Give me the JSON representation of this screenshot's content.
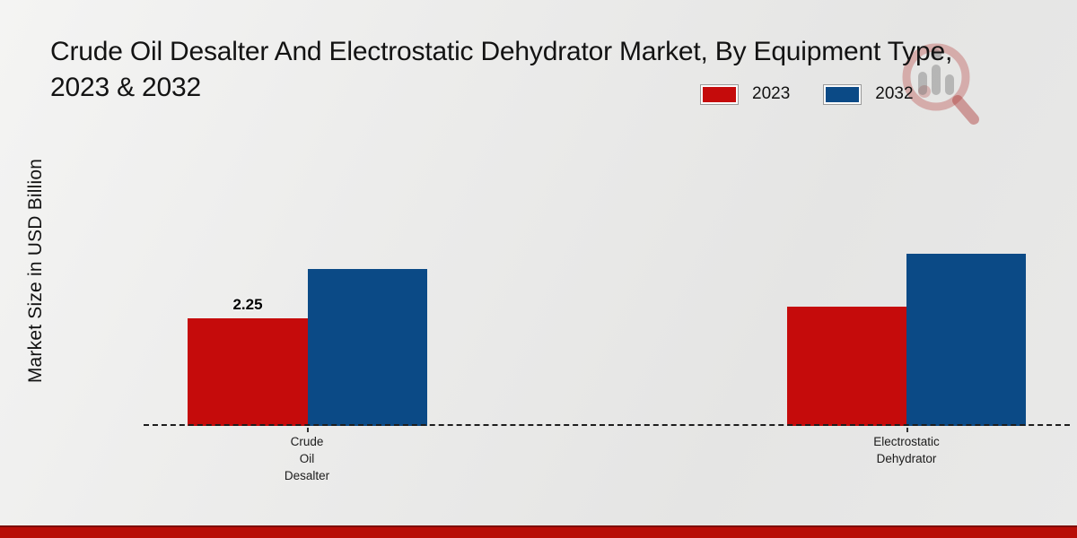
{
  "title": {
    "line1": "Crude Oil Desalter And Electrostatic Dehydrator Market, By Equipment Type,",
    "line2": "2023 & 2032"
  },
  "y_axis_label": "Market Size in USD Billion",
  "legend": {
    "items": [
      {
        "label": "2023",
        "color": "#c50b0b"
      },
      {
        "label": "2032",
        "color": "#0b4a86"
      }
    ]
  },
  "categories": [
    {
      "label": "Crude\nOil\nDesalter"
    },
    {
      "label": "Electrostatic\nDehydrator"
    }
  ],
  "data_labels": {
    "crude_2023": "2.25"
  },
  "colors": {
    "series_2023": "#c50b0b",
    "series_2032": "#0b4a86",
    "footer_strip": "#b80d07",
    "footer_strip_edge": "#7d0d06",
    "baseline": "#1d1d1d",
    "text": "#131313"
  },
  "watermark_icon": "magnifier-bar-chart-logo",
  "chart_data": {
    "type": "bar",
    "categories": [
      "Crude Oil Desalter",
      "Electrostatic Dehydrator"
    ],
    "series": [
      {
        "name": "2023",
        "color": "#c50b0b",
        "values": [
          2.25,
          2.49
        ]
      },
      {
        "name": "2032",
        "color": "#0b4a86",
        "values": [
          3.28,
          3.6
        ]
      }
    ],
    "title": "Crude Oil Desalter And Electrostatic Dehydrator Market, By Equipment Type, 2023 & 2032",
    "xlabel": "",
    "ylabel": "Market Size in USD Billion",
    "ylim": [
      0,
      6.3
    ],
    "grid": false,
    "axis_ticks_visible": false,
    "legend_position": "top-right",
    "baseline_style": "dashed",
    "shown_data_labels": [
      {
        "series": "2023",
        "category": "Crude Oil Desalter",
        "text": "2.25"
      }
    ]
  }
}
